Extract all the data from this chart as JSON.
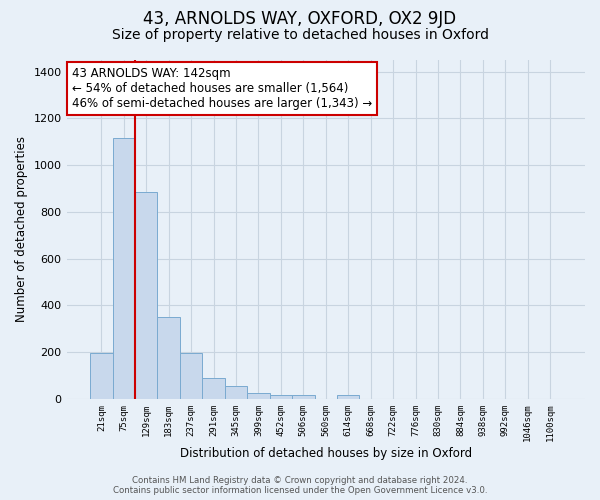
{
  "title": "43, ARNOLDS WAY, OXFORD, OX2 9JD",
  "subtitle": "Size of property relative to detached houses in Oxford",
  "xlabel": "Distribution of detached houses by size in Oxford",
  "ylabel": "Number of detached properties",
  "bar_labels": [
    "21sqm",
    "75sqm",
    "129sqm",
    "183sqm",
    "237sqm",
    "291sqm",
    "345sqm",
    "399sqm",
    "452sqm",
    "506sqm",
    "560sqm",
    "614sqm",
    "668sqm",
    "722sqm",
    "776sqm",
    "830sqm",
    "884sqm",
    "938sqm",
    "992sqm",
    "1046sqm",
    "1100sqm"
  ],
  "bar_heights": [
    195,
    1115,
    885,
    350,
    195,
    90,
    55,
    25,
    15,
    15,
    0,
    15,
    0,
    0,
    0,
    0,
    0,
    0,
    0,
    0,
    0
  ],
  "bar_color": "#c8d8ec",
  "bar_edge_color": "#7aaad0",
  "vline_x": 2,
  "vline_color": "#cc0000",
  "annotation_text": "43 ARNOLDS WAY: 142sqm\n← 54% of detached houses are smaller (1,564)\n46% of semi-detached houses are larger (1,343) →",
  "annotation_box_color": "#ffffff",
  "annotation_box_edge": "#cc0000",
  "ylim": [
    0,
    1450
  ],
  "yticks": [
    0,
    200,
    400,
    600,
    800,
    1000,
    1200,
    1400
  ],
  "grid_color": "#c8d4e0",
  "footer_line1": "Contains HM Land Registry data © Crown copyright and database right 2024.",
  "footer_line2": "Contains public sector information licensed under the Open Government Licence v3.0.",
  "background_color": "#e8f0f8",
  "plot_bg_color": "#e8f0f8",
  "title_fontsize": 12,
  "subtitle_fontsize": 10,
  "annotation_fontsize": 8.5
}
